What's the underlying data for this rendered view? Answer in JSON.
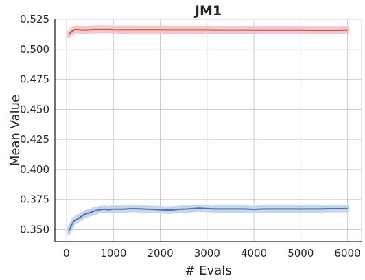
{
  "chart_data": {
    "type": "line",
    "title": "JM1",
    "xlabel": "# Evals",
    "ylabel": "Mean Value",
    "xlim": [
      -250,
      6300
    ],
    "ylim": [
      0.34,
      0.525
    ],
    "xticks": [
      0,
      1000,
      2000,
      3000,
      4000,
      5000,
      6000
    ],
    "yticks": [
      0.35,
      0.375,
      0.4,
      0.425,
      0.45,
      0.475,
      0.5,
      0.525
    ],
    "xtick_labels": [
      "0",
      "1000",
      "2000",
      "3000",
      "4000",
      "5000",
      "6000"
    ],
    "ytick_labels": [
      "0.350",
      "0.375",
      "0.400",
      "0.425",
      "0.450",
      "0.475",
      "0.500",
      "0.525"
    ],
    "grid": true,
    "legend": "none",
    "series": [
      {
        "color": "#c44e52",
        "band_color": "#f2c8ca",
        "band_halfwidth": 0.0015,
        "x": [
          50,
          100,
          150,
          200,
          300,
          400,
          500,
          600,
          700,
          800,
          900,
          1000,
          1200,
          1400,
          1600,
          1800,
          2000,
          2200,
          2400,
          2600,
          2800,
          3000,
          3200,
          3400,
          3600,
          3800,
          4000,
          4200,
          4400,
          4600,
          4800,
          5000,
          5200,
          5400,
          5600,
          5800,
          6000
        ],
        "y": [
          0.5125,
          0.5145,
          0.516,
          0.5165,
          0.5162,
          0.516,
          0.5163,
          0.5164,
          0.5165,
          0.5165,
          0.5165,
          0.5163,
          0.5162,
          0.5163,
          0.5163,
          0.5163,
          0.5163,
          0.5162,
          0.5162,
          0.5162,
          0.5162,
          0.5162,
          0.5161,
          0.5161,
          0.5161,
          0.5161,
          0.516,
          0.516,
          0.516,
          0.516,
          0.516,
          0.516,
          0.5159,
          0.5159,
          0.5159,
          0.5159,
          0.516
        ]
      },
      {
        "color": "#4c72b0",
        "band_color": "#c7d4eb",
        "band_halfwidth": 0.0015,
        "x": [
          50,
          100,
          150,
          200,
          300,
          400,
          500,
          600,
          700,
          800,
          900,
          1000,
          1200,
          1400,
          1600,
          1800,
          2000,
          2200,
          2400,
          2600,
          2800,
          3000,
          3200,
          3400,
          3600,
          3800,
          4000,
          4200,
          4400,
          4600,
          4800,
          5000,
          5200,
          5400,
          5600,
          5800,
          6000
        ],
        "y": [
          0.349,
          0.353,
          0.357,
          0.358,
          0.3605,
          0.363,
          0.364,
          0.3655,
          0.3665,
          0.367,
          0.3665,
          0.367,
          0.367,
          0.3675,
          0.3672,
          0.3668,
          0.3665,
          0.3662,
          0.3668,
          0.3672,
          0.3678,
          0.3675,
          0.3672,
          0.3672,
          0.3672,
          0.3672,
          0.3668,
          0.3672,
          0.3672,
          0.3672,
          0.3672,
          0.3672,
          0.3672,
          0.3672,
          0.3674,
          0.3674,
          0.3675
        ]
      }
    ]
  }
}
